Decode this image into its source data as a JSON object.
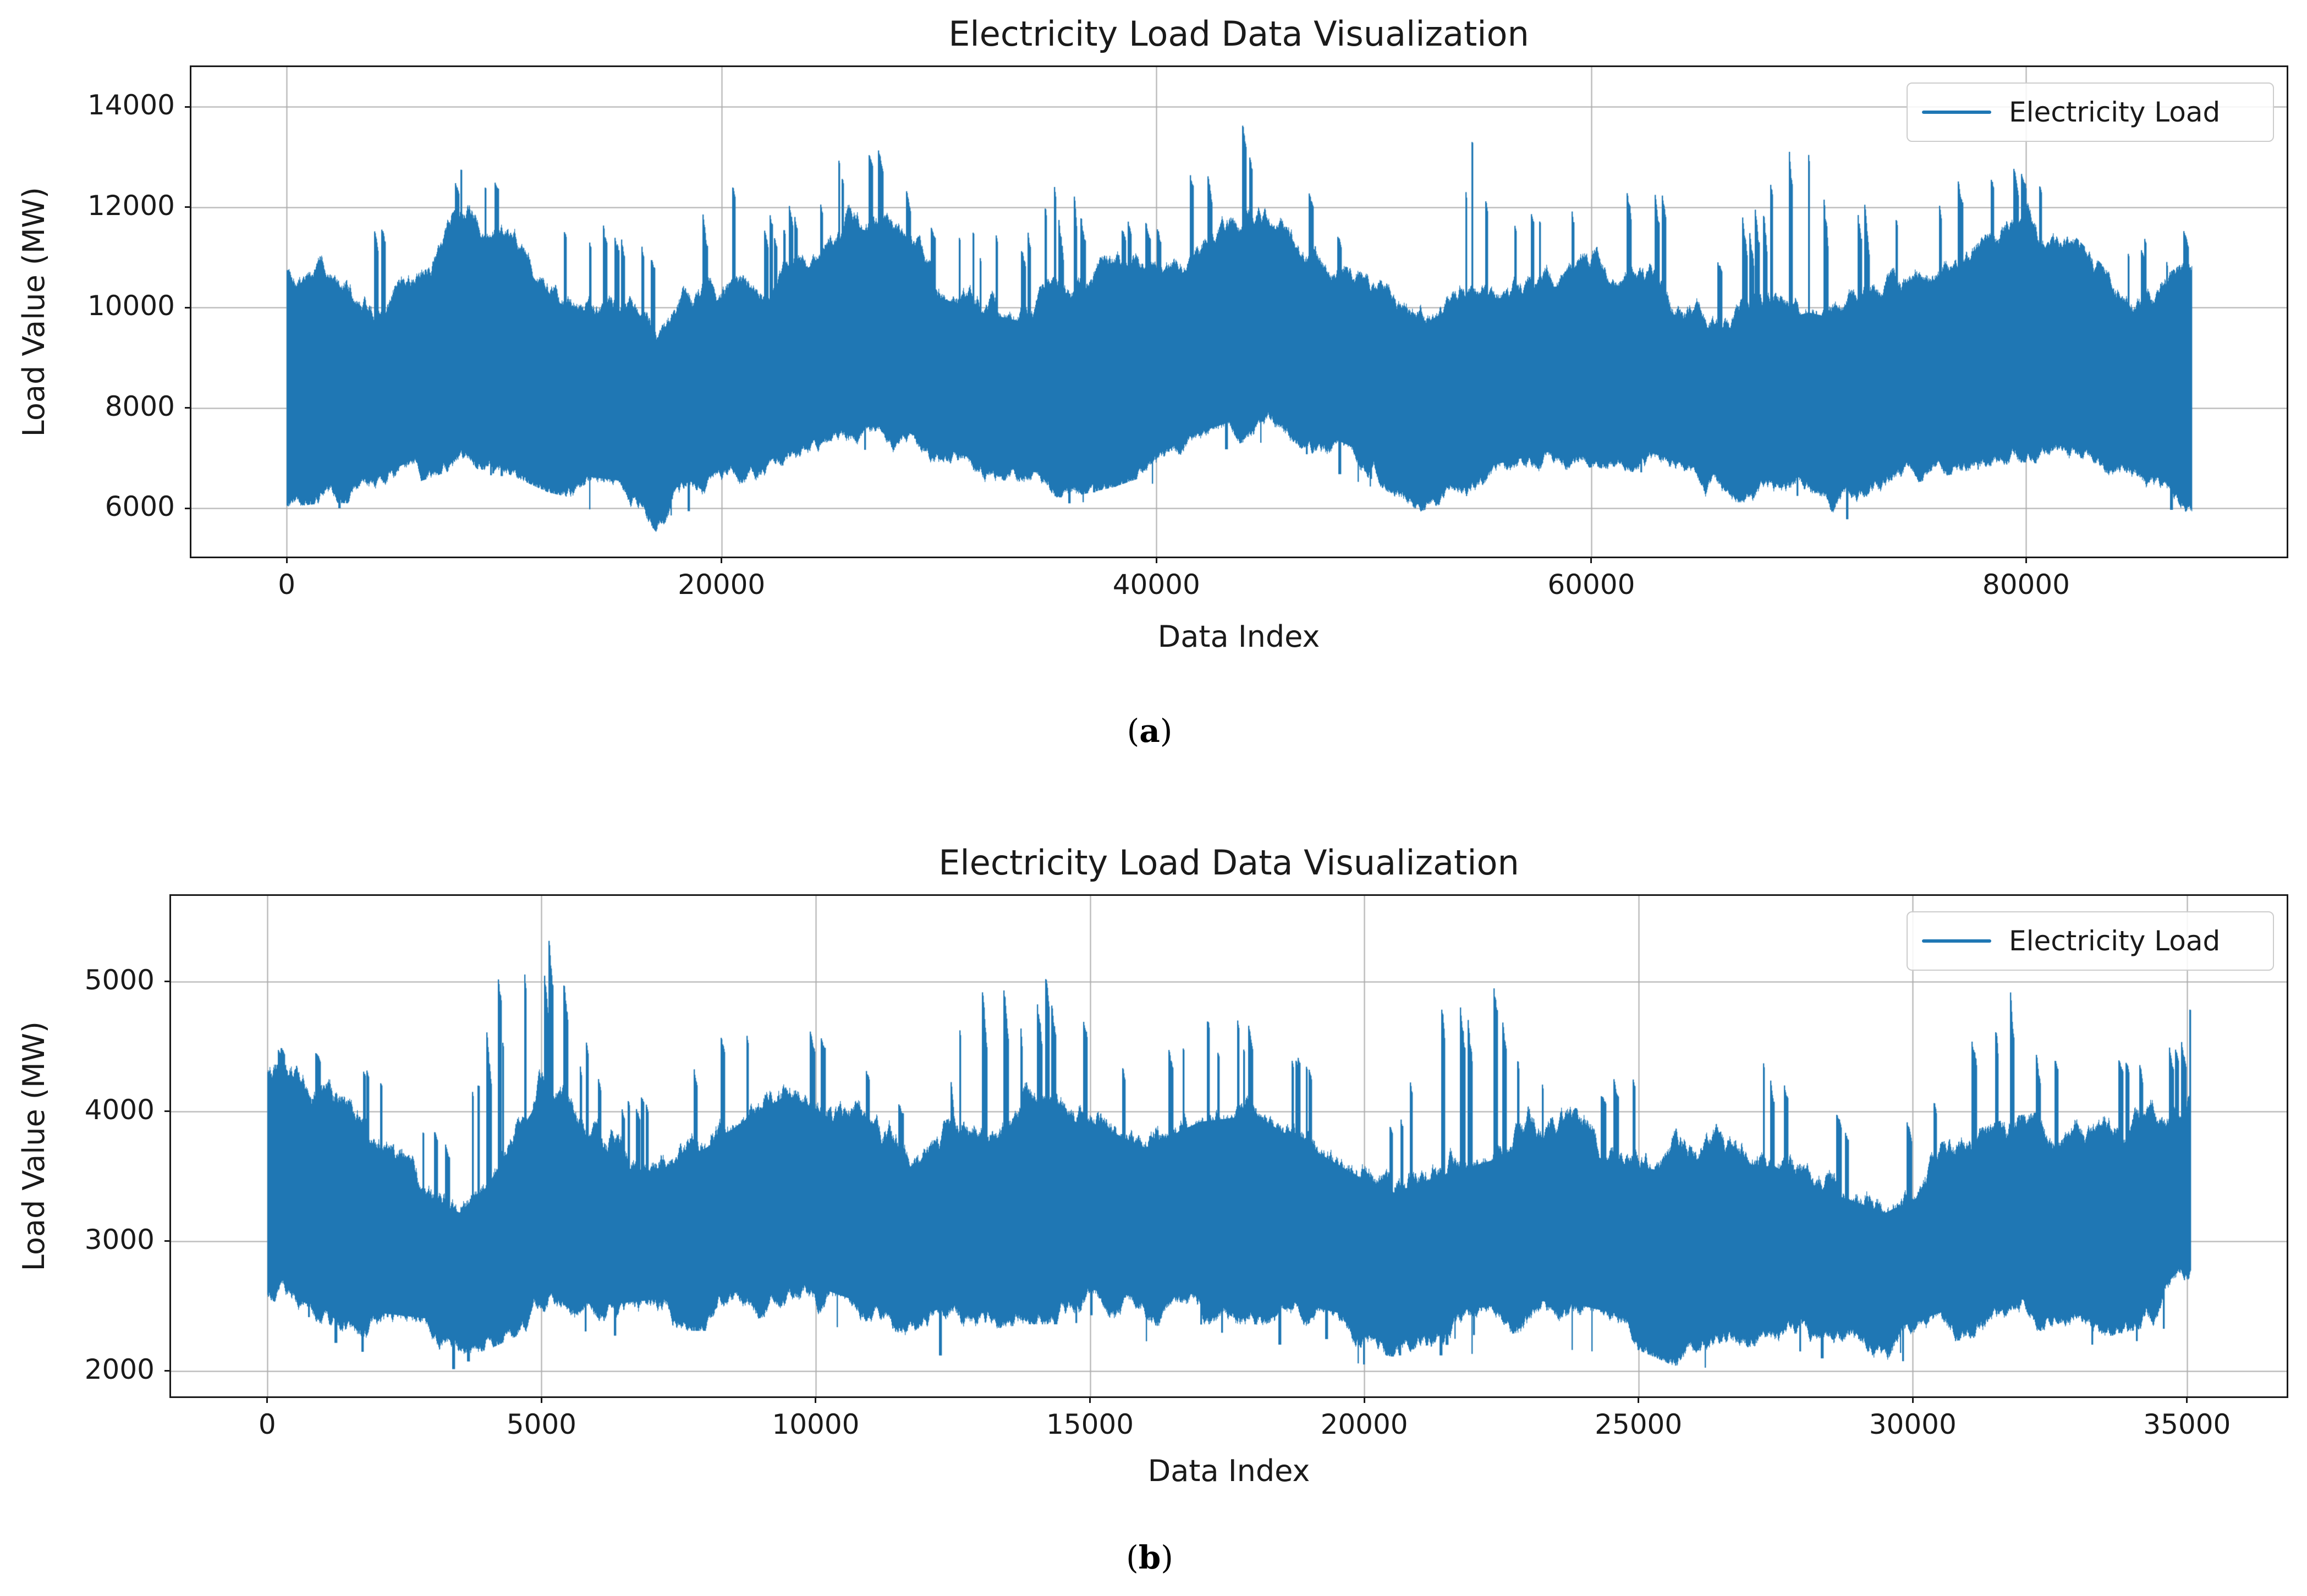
{
  "background_color": "#ffffff",
  "captions": {
    "a": {
      "open": "(",
      "letter": "a",
      "close": ")"
    },
    "b": {
      "open": "(",
      "letter": "b",
      "close": ")"
    }
  },
  "chart_data": [
    {
      "id": "a",
      "type": "line",
      "title": "Electricity Load Data Visualization",
      "xlabel": "Data Index",
      "ylabel": "Load Value (MW)",
      "legend": [
        "Electricity Load"
      ],
      "legend_position": "upper right",
      "grid": true,
      "line_color": "#1f77b4",
      "grid_color": "#adadad",
      "xlim": [
        -4380,
        91980
      ],
      "ylim": [
        5040,
        14790
      ],
      "xticks": [
        0,
        20000,
        40000,
        60000,
        80000
      ],
      "yticks": [
        6000,
        8000,
        10000,
        12000,
        14000
      ],
      "x_data_range": [
        0,
        87600
      ],
      "y_observed_range": [
        5490,
        14350
      ],
      "series": [
        {
          "name": "Electricity Load",
          "representation": "envelope",
          "x": [
            0,
            2000,
            4000,
            6000,
            8000,
            10000,
            12000,
            14000,
            16000,
            17000,
            18000,
            20000,
            22000,
            24000,
            26000,
            28000,
            30000,
            32000,
            34000,
            36000,
            38000,
            40000,
            42000,
            44000,
            45000,
            46000,
            48000,
            50000,
            52000,
            54000,
            56000,
            58000,
            60000,
            62000,
            64000,
            66000,
            68000,
            70000,
            71000,
            72000,
            74000,
            76000,
            78000,
            80000,
            82000,
            84000,
            86000,
            87600
          ],
          "min": [
            6100,
            6200,
            6150,
            6600,
            6900,
            6800,
            6400,
            6200,
            6100,
            5600,
            6100,
            6400,
            6500,
            6900,
            7200,
            7200,
            6800,
            6500,
            6300,
            6300,
            6500,
            6800,
            7100,
            7400,
            7500,
            7400,
            7000,
            6600,
            6000,
            6300,
            6500,
            6700,
            6900,
            6800,
            6500,
            6200,
            6200,
            6300,
            5750,
            6100,
            6500,
            6700,
            6900,
            7000,
            6900,
            6500,
            6200,
            5800
          ],
          "dense_max": [
            10800,
            11200,
            10300,
            10800,
            12000,
            12000,
            10800,
            10400,
            10600,
            9900,
            10300,
            10800,
            10700,
            11400,
            12200,
            12000,
            10800,
            10500,
            10300,
            10600,
            11000,
            11000,
            11500,
            12100,
            12300,
            12000,
            10800,
            10500,
            10200,
            10700,
            10800,
            11000,
            11100,
            11000,
            10400,
            10100,
            10300,
            10500,
            10400,
            10500,
            10800,
            11200,
            11700,
            12100,
            11400,
            10500,
            10400,
            10900
          ],
          "spike_max": [
            12300,
            13230,
            11600,
            12000,
            13000,
            13000,
            12000,
            11500,
            12450,
            11000,
            11600,
            12900,
            11800,
            12600,
            13300,
            13100,
            11600,
            11500,
            11600,
            13000,
            12000,
            12200,
            12800,
            14000,
            14350,
            13500,
            11600,
            11700,
            13100,
            14200,
            11800,
            12000,
            12900,
            12800,
            12100,
            10800,
            13300,
            13800,
            13900,
            13400,
            12000,
            12500,
            12900,
            13200,
            12400,
            11300,
            11500,
            11600
          ]
        }
      ]
    },
    {
      "id": "b",
      "type": "line",
      "title": "Electricity Load Data Visualization",
      "xlabel": "Data Index",
      "ylabel": "Load Value (MW)",
      "legend": [
        "Electricity Load"
      ],
      "legend_position": "upper right",
      "grid": true,
      "line_color": "#1f77b4",
      "grid_color": "#adadad",
      "xlim": [
        -1753,
        36817
      ],
      "ylim": [
        1805,
        5660
      ],
      "xticks": [
        0,
        5000,
        10000,
        15000,
        20000,
        25000,
        30000,
        35000
      ],
      "yticks": [
        2000,
        3000,
        4000,
        5000
      ],
      "x_data_range": [
        0,
        35064
      ],
      "y_observed_range": [
        1980,
        5485
      ],
      "series": [
        {
          "name": "Electricity Load",
          "representation": "envelope",
          "x": [
            0,
            1000,
            2000,
            3000,
            3500,
            4000,
            5000,
            5200,
            6000,
            7000,
            8000,
            9000,
            9500,
            10000,
            11000,
            12000,
            13000,
            13800,
            14500,
            15000,
            16000,
            17000,
            18000,
            19000,
            20000,
            20500,
            21500,
            22300,
            23000,
            24000,
            25000,
            25800,
            26500,
            27500,
            28500,
            29500,
            30500,
            31800,
            32500,
            33500,
            34500,
            35064
          ],
          "min": [
            2600,
            2400,
            2250,
            2200,
            2150,
            2200,
            2400,
            2400,
            2300,
            2350,
            2350,
            2450,
            2500,
            2450,
            2300,
            2250,
            2350,
            2400,
            2400,
            2450,
            2350,
            2400,
            2400,
            2300,
            2200,
            2150,
            2250,
            2300,
            2350,
            2300,
            2200,
            2050,
            2200,
            2250,
            2150,
            2100,
            2250,
            2350,
            2350,
            2300,
            2400,
            2700
          ],
          "dense_max": [
            4300,
            4300,
            4000,
            3600,
            3500,
            3700,
            4400,
            4400,
            3900,
            3800,
            4000,
            4300,
            4400,
            4300,
            4000,
            3800,
            4000,
            4200,
            4200,
            4200,
            4000,
            4200,
            4250,
            4000,
            3750,
            3650,
            3800,
            3900,
            4050,
            3950,
            3850,
            3800,
            3900,
            3850,
            3650,
            3500,
            3700,
            3900,
            3950,
            4000,
            4100,
            4300
          ],
          "spike_max": [
            4500,
            4500,
            4300,
            3900,
            3800,
            4950,
            5500,
            5400,
            4300,
            4100,
            4600,
            4700,
            4800,
            4650,
            4300,
            4200,
            5200,
            5300,
            4850,
            4750,
            4400,
            4850,
            4650,
            4350,
            4050,
            3950,
            4900,
            5050,
            4500,
            4350,
            4250,
            4250,
            4700,
            4400,
            4000,
            3850,
            4150,
            5080,
            4400,
            4400,
            4600,
            4800
          ]
        }
      ]
    }
  ]
}
